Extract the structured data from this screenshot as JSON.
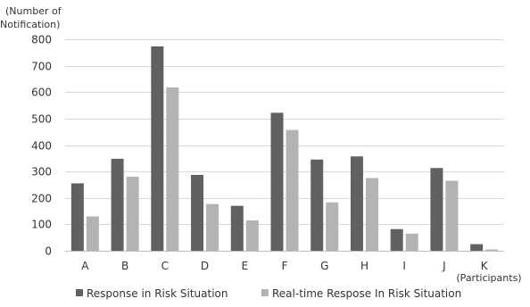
{
  "chart_data": {
    "type": "bar",
    "ylabel_lines": [
      "(Number of",
      "Notification)"
    ],
    "xlabel": "(Participants)",
    "categories": [
      "A",
      "B",
      "C",
      "D",
      "E",
      "F",
      "G",
      "H",
      "I",
      "J",
      "K"
    ],
    "ylim": [
      0,
      800
    ],
    "yticks": [
      0,
      100,
      200,
      300,
      400,
      500,
      600,
      700,
      800
    ],
    "grid": true,
    "legend_position": "bottom",
    "series": [
      {
        "name": "Response in Risk Situation",
        "color": "#616161",
        "values": [
          255,
          348,
          773,
          287,
          170,
          522,
          345,
          357,
          82,
          313,
          25
        ]
      },
      {
        "name": "Real-time Respose In Risk Situation",
        "color": "#b3b3b3",
        "values": [
          130,
          280,
          618,
          177,
          115,
          457,
          183,
          275,
          65,
          265,
          5
        ]
      }
    ]
  }
}
